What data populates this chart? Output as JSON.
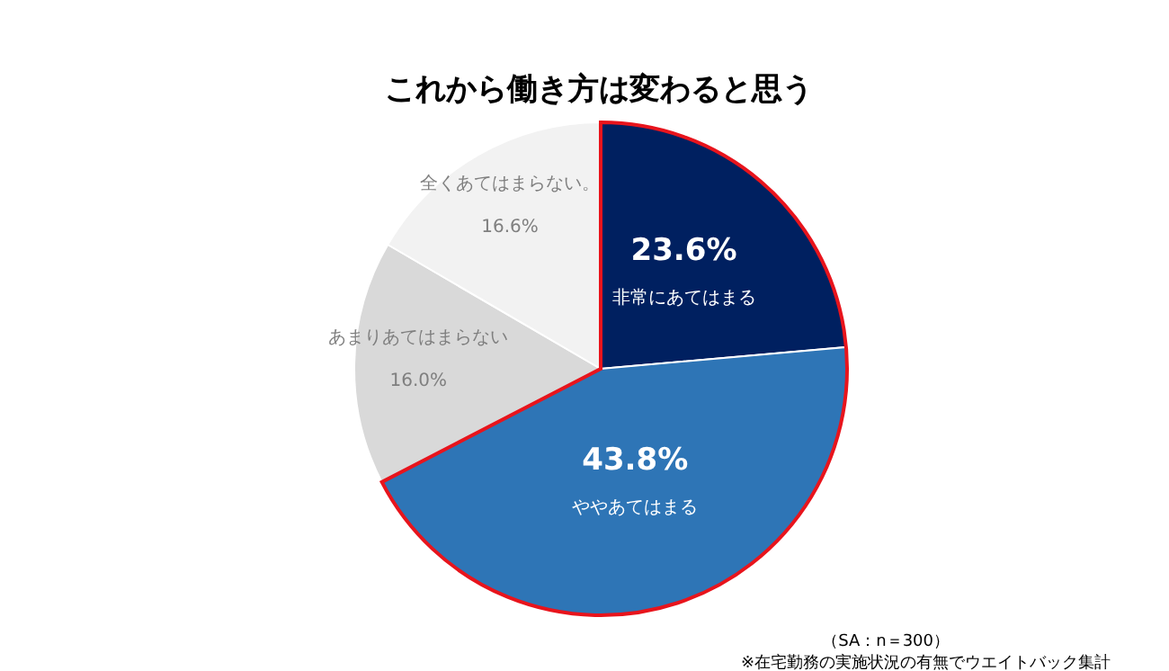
{
  "chart_data": {
    "type": "pie",
    "title": "これから働き方は変わると思う",
    "categories": [
      "非常にあてはまる",
      "ややあてはまる",
      "あまりあてはまらない",
      "全くあてはまらない。"
    ],
    "values": [
      23.6,
      43.8,
      16.0,
      16.6
    ],
    "colors": [
      "#002060",
      "#2e75b6",
      "#d9d9d9",
      "#f2f2f2"
    ],
    "value_labels": [
      "23.6%",
      "43.8%",
      "16.0%",
      "16.6%"
    ],
    "annotations": [
      "（SA：n＝300）",
      "※在宅勤務の実施状況の有無でウエイトバック集計"
    ]
  }
}
